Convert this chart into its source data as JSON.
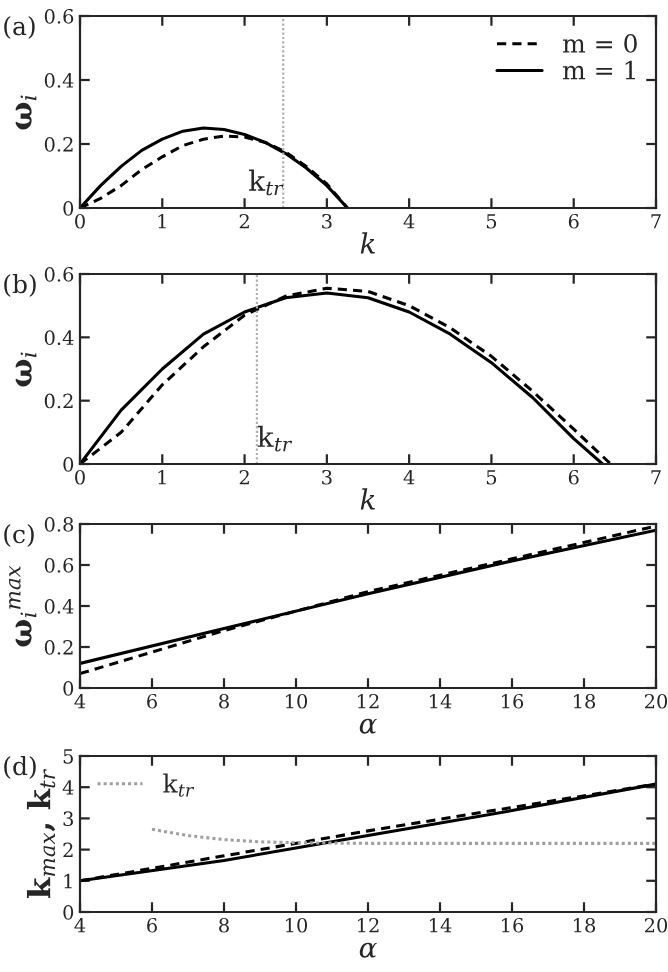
{
  "chart_data": [
    {
      "type": "line",
      "title": "(a)",
      "xlabel": "k",
      "ylabel": "ω$_{i}$",
      "xlim": [
        0,
        7
      ],
      "xticks": [
        0,
        1,
        2,
        3,
        4,
        5,
        6,
        7
      ],
      "ylim": [
        0,
        0.6
      ],
      "yticks": [
        0,
        0.2,
        0.4,
        0.6
      ],
      "legend": "top right",
      "grid": false,
      "marker": "none",
      "series": [
        {
          "name": "m = 0",
          "color": "#000000",
          "line_style": "dashed",
          "x": [
            0,
            0.25,
            0.5,
            0.75,
            1,
            1.25,
            1.5,
            1.75,
            2,
            2.25,
            2.5,
            2.75,
            3,
            3.25
          ],
          "values": [
            0,
            0.03,
            0.07,
            0.12,
            0.16,
            0.195,
            0.215,
            0.225,
            0.222,
            0.205,
            0.175,
            0.13,
            0.075,
            0
          ]
        },
        {
          "name": "m = 1",
          "color": "#000000",
          "line_style": "solid",
          "x": [
            0,
            0.25,
            0.5,
            0.75,
            1,
            1.25,
            1.5,
            1.75,
            2,
            2.25,
            2.5,
            2.75,
            3,
            3.25
          ],
          "values": [
            0,
            0.07,
            0.13,
            0.18,
            0.215,
            0.24,
            0.25,
            0.245,
            0.23,
            0.205,
            0.17,
            0.125,
            0.07,
            0
          ]
        }
      ],
      "ref_lines": [
        {
          "axis": "x",
          "value": 2.47,
          "label": "k$_{tr}$",
          "color": "#b0b0b0",
          "line_style": "dotted"
        }
      ]
    },
    {
      "type": "line",
      "title": "(b)",
      "xlabel": "k",
      "ylabel": "ω$_{i}$",
      "xlim": [
        0,
        7
      ],
      "xticks": [
        0,
        1,
        2,
        3,
        4,
        5,
        6,
        7
      ],
      "ylim": [
        0,
        0.6
      ],
      "yticks": [
        0,
        0.2,
        0.4,
        0.6
      ],
      "grid": false,
      "marker": "none",
      "series": [
        {
          "color": "#000000",
          "line_style": "dashed",
          "x": [
            0,
            0.5,
            1,
            1.5,
            2,
            2.5,
            3,
            3.5,
            4,
            4.5,
            5,
            5.5,
            6,
            6.45
          ],
          "values": [
            0,
            0.1,
            0.25,
            0.37,
            0.47,
            0.53,
            0.555,
            0.545,
            0.5,
            0.43,
            0.34,
            0.23,
            0.11,
            0
          ]
        },
        {
          "color": "#000000",
          "line_style": "solid",
          "x": [
            0,
            0.5,
            1,
            1.5,
            2,
            2.5,
            3,
            3.5,
            4,
            4.5,
            5,
            5.5,
            6,
            6.35
          ],
          "values": [
            0,
            0.17,
            0.3,
            0.41,
            0.48,
            0.525,
            0.54,
            0.525,
            0.48,
            0.41,
            0.32,
            0.21,
            0.08,
            0
          ]
        }
      ],
      "ref_lines": [
        {
          "axis": "x",
          "value": 2.15,
          "label": "k$_{tr}$",
          "color": "#b0b0b0",
          "line_style": "dotted"
        }
      ]
    },
    {
      "type": "line",
      "title": "(c)",
      "xlabel": "α",
      "ylabel": "ω$_{i}$$^{max}$",
      "xlim": [
        4,
        20
      ],
      "xticks": [
        4,
        6,
        8,
        10,
        12,
        14,
        16,
        18,
        20
      ],
      "ylim": [
        0,
        0.8
      ],
      "yticks": [
        0,
        0.2,
        0.4,
        0.6,
        0.8
      ],
      "grid": false,
      "marker": "none",
      "series": [
        {
          "color": "#000000",
          "line_style": "dashed",
          "x": [
            4,
            8,
            12,
            16,
            20
          ],
          "values": [
            0.07,
            0.28,
            0.47,
            0.63,
            0.79
          ]
        },
        {
          "color": "#000000",
          "line_style": "solid",
          "x": [
            4,
            8,
            12,
            16,
            20
          ],
          "values": [
            0.12,
            0.29,
            0.46,
            0.62,
            0.77
          ]
        }
      ]
    },
    {
      "type": "line",
      "title": "(d)",
      "xlabel": "α",
      "ylabel": "k$_{max}$, k$_{tr}$",
      "xlim": [
        4,
        20
      ],
      "xticks": [
        4,
        6,
        8,
        10,
        12,
        14,
        16,
        18,
        20
      ],
      "ylim": [
        0,
        5
      ],
      "yticks": [
        0,
        1,
        2,
        3,
        4,
        5
      ],
      "legend": "top left",
      "grid": false,
      "marker": "none",
      "series": [
        {
          "color": "#000000",
          "line_style": "dashed",
          "x": [
            4,
            8,
            12,
            16,
            20
          ],
          "values": [
            1.0,
            1.8,
            2.6,
            3.35,
            4.1
          ]
        },
        {
          "color": "#000000",
          "line_style": "solid",
          "x": [
            4,
            8,
            12,
            16,
            20
          ],
          "values": [
            1.0,
            1.65,
            2.45,
            3.25,
            4.1
          ]
        },
        {
          "name": "k$_{tr}$",
          "color": "#a0a0a0",
          "line_style": "dotted",
          "x": [
            6,
            7,
            8,
            9,
            10,
            12,
            16,
            20
          ],
          "values": [
            2.65,
            2.45,
            2.32,
            2.25,
            2.22,
            2.2,
            2.2,
            2.2
          ]
        }
      ]
    }
  ]
}
